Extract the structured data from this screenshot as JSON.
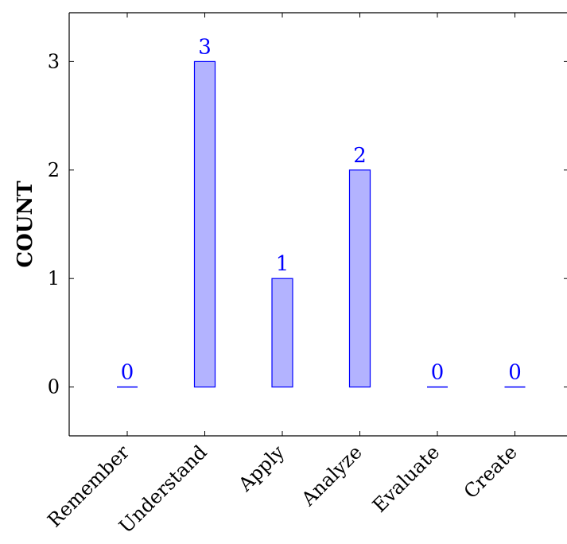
{
  "chart_data": {
    "type": "bar",
    "categories": [
      "Remember",
      "Understand",
      "Apply",
      "Analyze",
      "Evaluate",
      "Create"
    ],
    "values": [
      0,
      3,
      1,
      2,
      0,
      0
    ],
    "ylabel": "COUNT",
    "xlabel": "",
    "yticks": [
      0,
      1,
      2,
      3
    ],
    "ylim": [
      -0.45,
      3.45
    ],
    "grid": false,
    "data_labels": true,
    "colors": {
      "bar_fill": "#b3b3ff",
      "bar_stroke": "#0000ff",
      "label": "#0000ff",
      "axis": "#000000"
    }
  }
}
